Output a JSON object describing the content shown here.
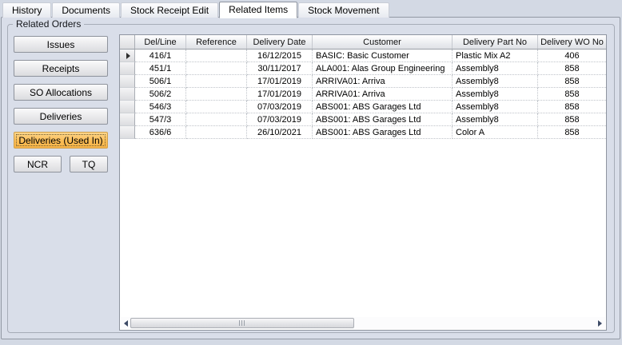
{
  "tabs": [
    {
      "label": "History",
      "active": false
    },
    {
      "label": "Documents",
      "active": false
    },
    {
      "label": "Stock Receipt Edit",
      "active": false
    },
    {
      "label": "Related Items",
      "active": true
    },
    {
      "label": "Stock Movement",
      "active": false
    }
  ],
  "group_label": "Related Orders",
  "buttons": [
    {
      "label": "Issues",
      "active": false
    },
    {
      "label": "Receipts",
      "active": false
    },
    {
      "label": "SO Allocations",
      "active": false
    },
    {
      "label": "Deliveries",
      "active": false
    },
    {
      "label": "Deliveries (Used In)",
      "active": true
    }
  ],
  "small_buttons": [
    {
      "label": "NCR"
    },
    {
      "label": "TQ"
    }
  ],
  "grid": {
    "columns": [
      "Del/Line",
      "Reference",
      "Delivery Date",
      "Customer",
      "Delivery Part No",
      "Delivery WO No"
    ],
    "rows": [
      [
        "416/1",
        "",
        "16/12/2015",
        "BASIC: Basic Customer",
        "Plastic Mix A2",
        "406"
      ],
      [
        "451/1",
        "",
        "30/11/2017",
        "ALA001: Alas Group Engineering",
        "Assembly8",
        "858"
      ],
      [
        "506/1",
        "",
        "17/01/2019",
        "ARRIVA01: Arriva",
        "Assembly8",
        "858"
      ],
      [
        "506/2",
        "",
        "17/01/2019",
        "ARRIVA01: Arriva",
        "Assembly8",
        "858"
      ],
      [
        "546/3",
        "",
        "07/03/2019",
        "ABS001: ABS Garages Ltd",
        "Assembly8",
        "858"
      ],
      [
        "547/3",
        "",
        "07/03/2019",
        "ABS001: ABS Garages Ltd",
        "Assembly8",
        "858"
      ],
      [
        "636/6",
        "",
        "26/10/2021",
        "ABS001: ABS Garages Ltd",
        "Color A",
        "858"
      ]
    ],
    "selected_row_index": 0
  },
  "icons": {
    "current_row_marker": "right-triangle",
    "scroll_left": "left-triangle",
    "scroll_right": "right-triangle"
  },
  "colors": {
    "active_button_fill": "#FBBD55",
    "active_button_border": "#CFA04B",
    "panel_bg": "#D9DEE9",
    "scroll_arrow": "#3D4A66"
  }
}
